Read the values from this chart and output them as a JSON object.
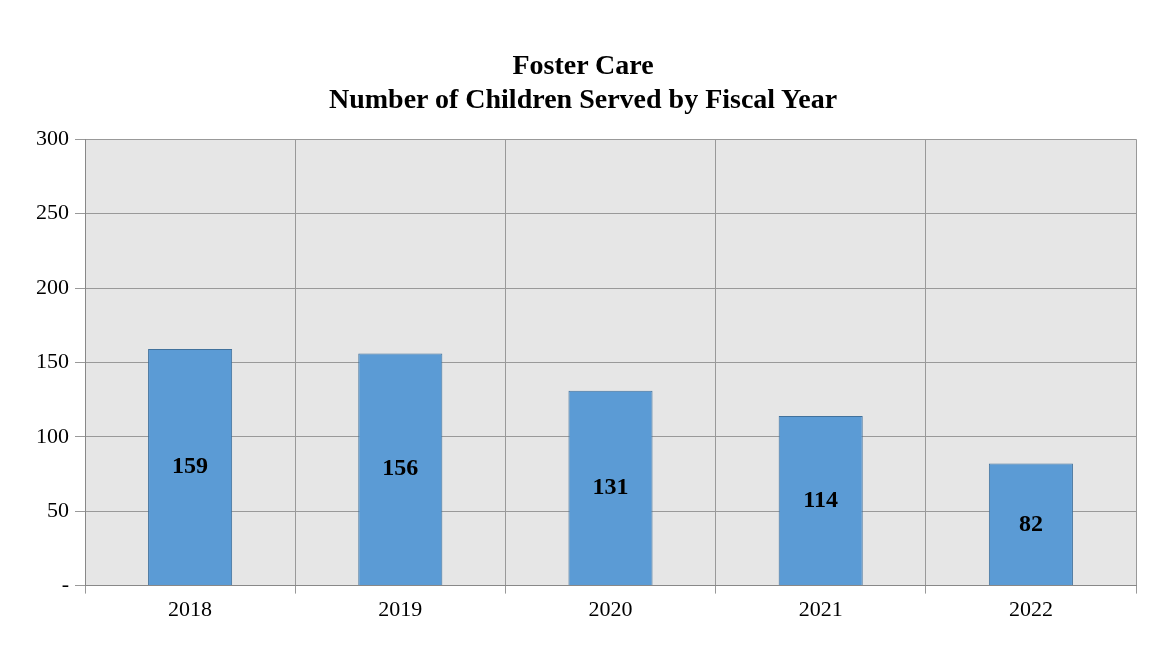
{
  "chart_data": {
    "type": "bar",
    "title": "Foster Care",
    "subtitle": "Number of Children Served by Fiscal Year",
    "categories": [
      "2018",
      "2019",
      "2020",
      "2021",
      "2022"
    ],
    "values": [
      159,
      156,
      131,
      114,
      82
    ],
    "color": "#5b9bd5",
    "ylim": [
      0,
      300
    ],
    "yticks": [
      {
        "value": 0,
        "label": "-"
      },
      50,
      100,
      150,
      200,
      250,
      300
    ],
    "grid": true,
    "data_labels": true
  }
}
